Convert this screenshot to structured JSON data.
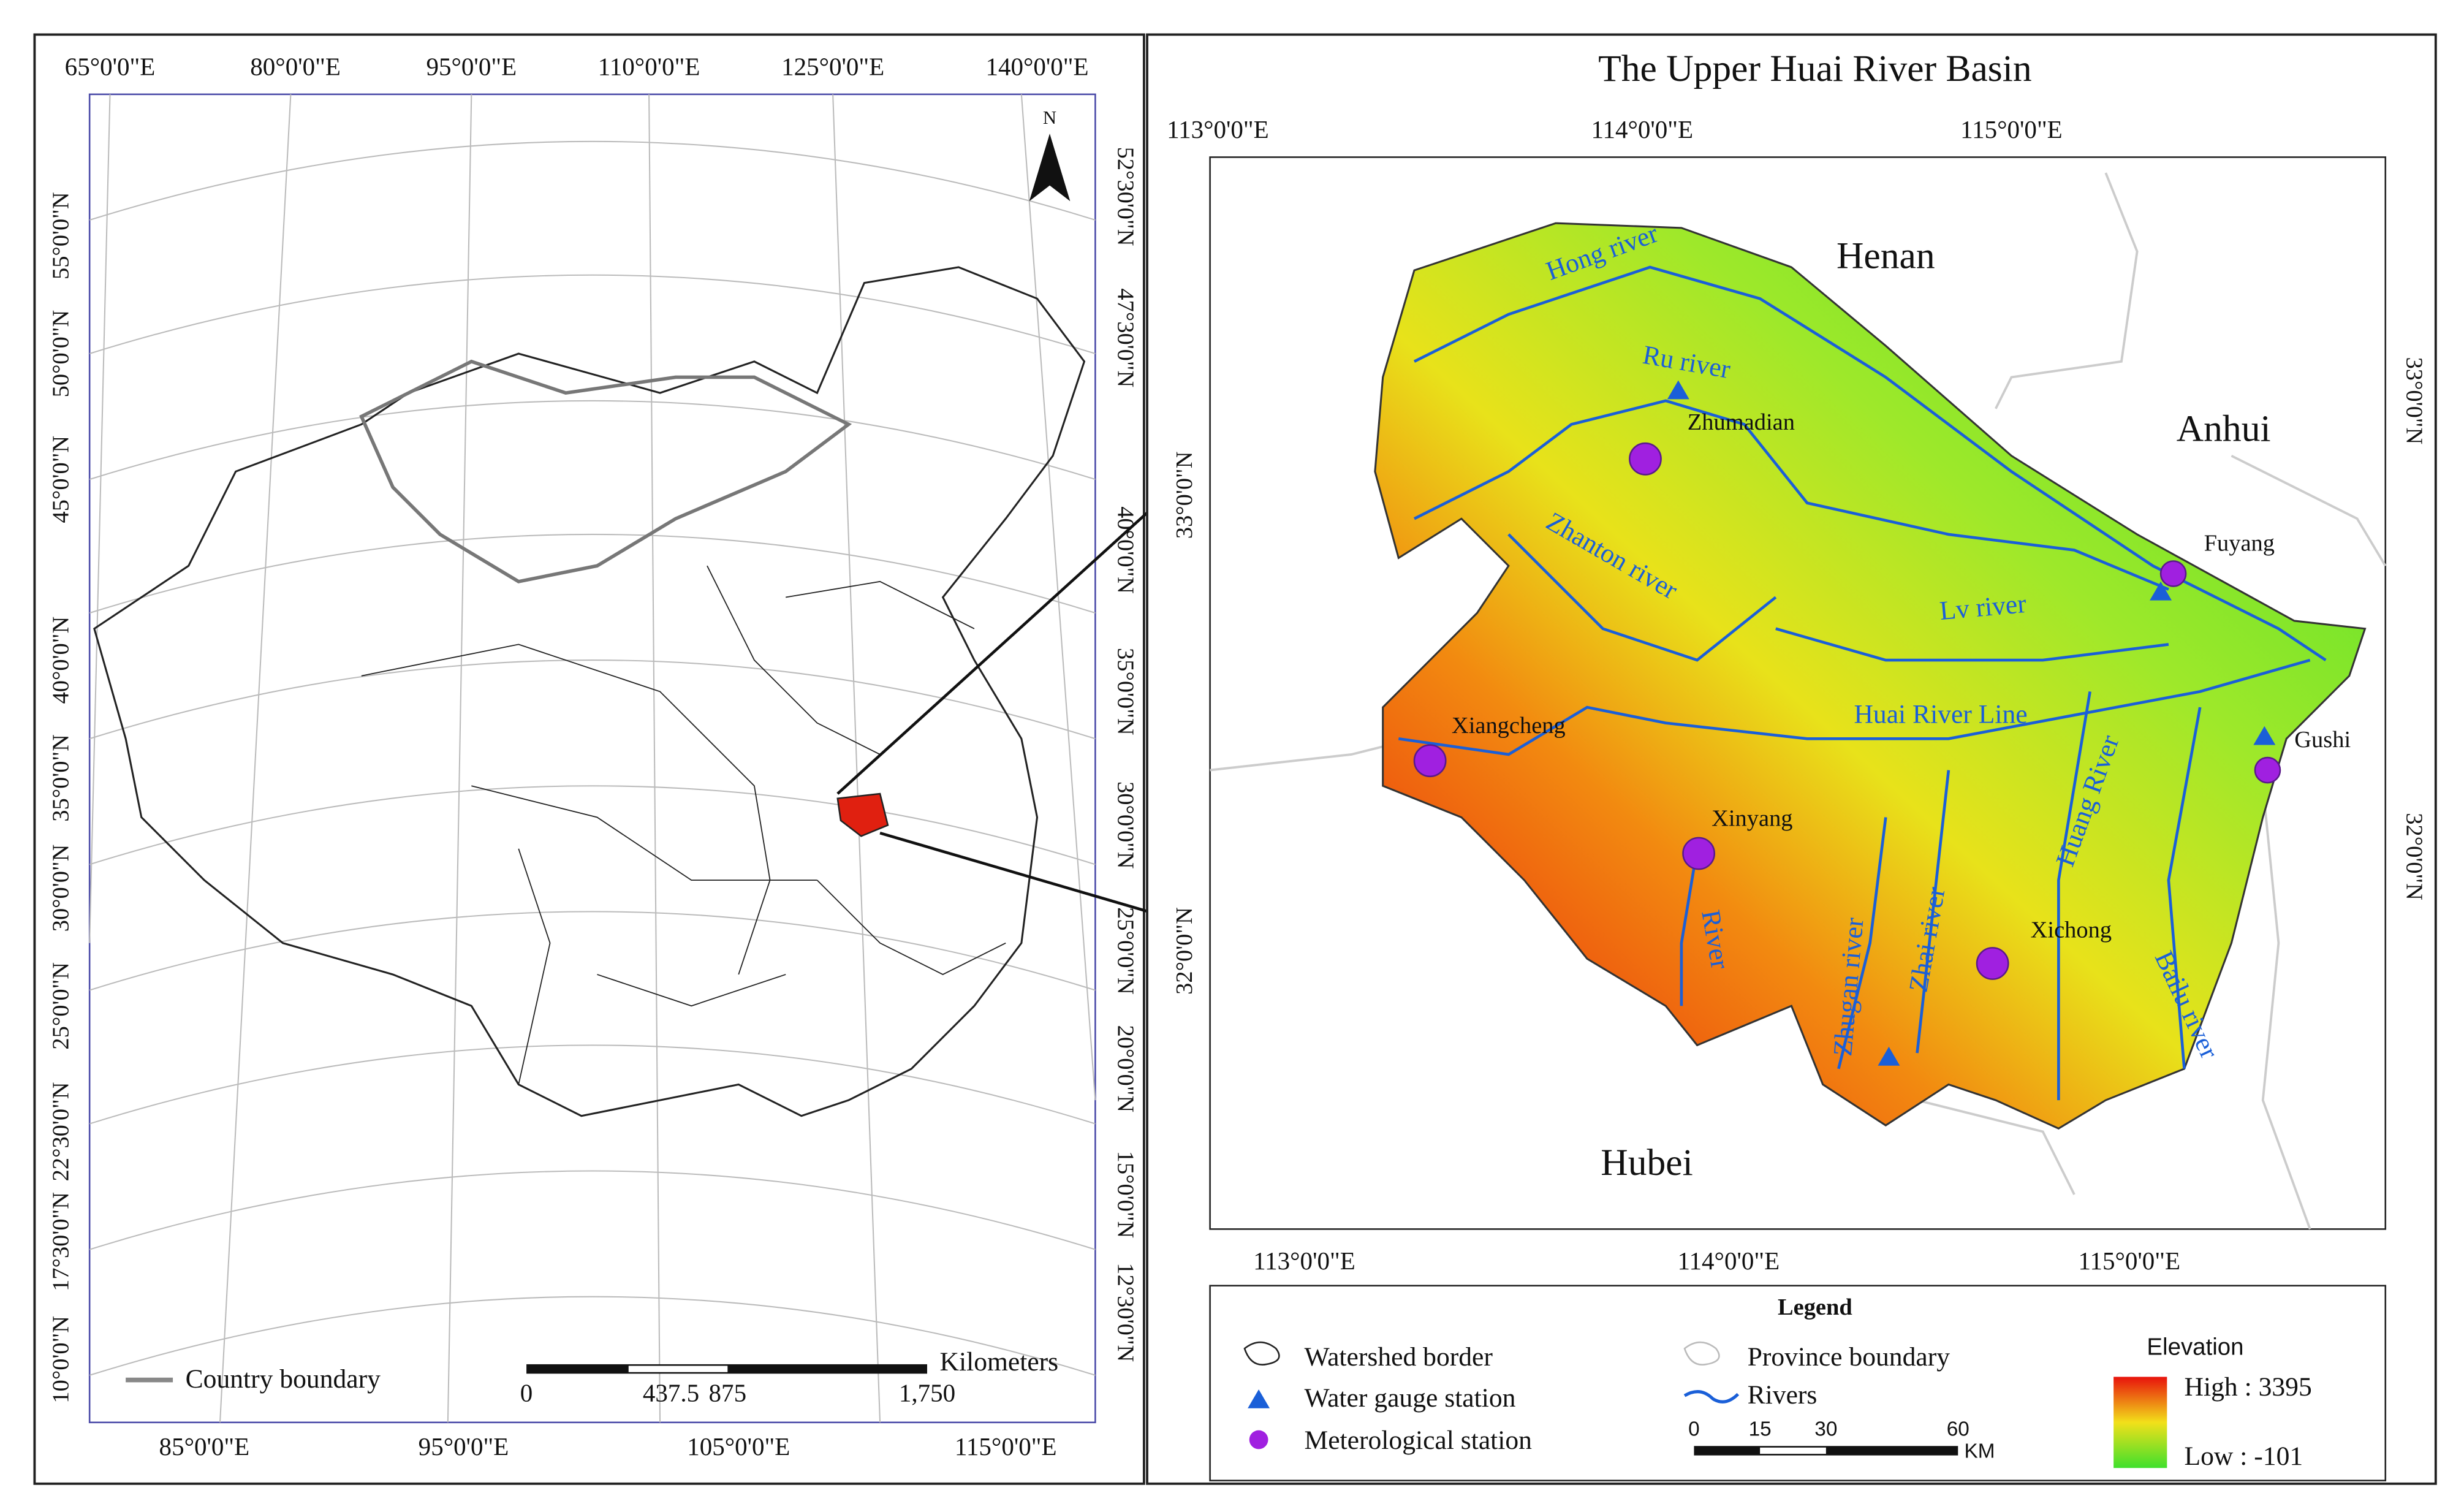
{
  "left_map": {
    "top_lon_labels": [
      "65°0'0\"E",
      "80°0'0\"E",
      "95°0'0\"E",
      "110°0'0\"E",
      "125°0'0\"E",
      "140°0'0\"E"
    ],
    "bottom_lon_labels": [
      "85°0'0\"E",
      "95°0'0\"E",
      "105°0'0\"E",
      "115°0'0\"E"
    ],
    "left_lat_labels": [
      "55°0'0\"N",
      "50°0'0\"N",
      "45°0'0\"N",
      "40°0'0\"N",
      "35°0'0\"N",
      "30°0'0\"N",
      "25°0'0\"N",
      "22°30'0\"N",
      "17°30'0\"N",
      "10°0'0\"N"
    ],
    "right_lat_labels": [
      "52°30'0\"N",
      "47°30'0\"N",
      "40°0'0\"N",
      "35°0'0\"N",
      "30°0'0\"N",
      "25°0'0\"N",
      "20°0'0\"N",
      "15°0'0\"N",
      "12°30'0\"N"
    ],
    "north": "N",
    "legend": "Country boundary",
    "scale_labels": [
      "0",
      "437.5",
      "875",
      "1,750"
    ],
    "scale_unit": "Kilometers"
  },
  "right_map": {
    "title": "The Upper Huai River Basin",
    "top_lon_labels": [
      "113°0'0\"E",
      "114°0'0\"E",
      "115°0'0\"E"
    ],
    "bottom_lon_labels": [
      "113°0'0\"E",
      "114°0'0\"E",
      "115°0'0\"E"
    ],
    "left_lat_labels": [
      "33°0'0\"N",
      "32°0'0\"N"
    ],
    "right_lat_labels": [
      "33°0'0\"N",
      "32°0'0\"N"
    ],
    "provinces": [
      "Henan",
      "Anhui",
      "Hubei"
    ],
    "rivers": [
      "Hong river",
      "Ru river",
      "Zhanton river",
      "Lv river",
      "Huai River Line",
      "Huang River",
      "River",
      "Zhugan river",
      "Zhai river",
      "Bailu river"
    ],
    "stations": [
      "Zhumadian",
      "Fuyang",
      "Gushi",
      "Xiangcheng",
      "Xinyang",
      "Xichong"
    ]
  },
  "legend": {
    "title": "Legend",
    "items": [
      "Watershed border",
      "Water gauge station",
      "Meterological station",
      "Province boundary",
      "Rivers"
    ],
    "elevation_title": "Elevation",
    "high": "High : 3395",
    "low": "Low : -101",
    "scale_labels": [
      "0",
      "15",
      "30",
      "60"
    ],
    "scale_unit": "KM"
  }
}
